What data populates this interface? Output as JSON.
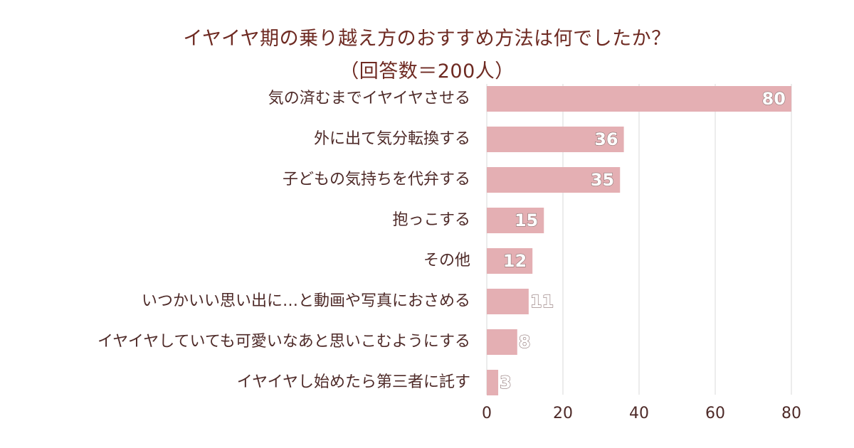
{
  "chart_data": {
    "type": "bar",
    "orientation": "horizontal",
    "title": "イヤイヤ期の乗り越え方のおすすめ方法は何でしたか？",
    "subtitle": "（回答数＝200人）",
    "xlabel": "",
    "ylabel": "",
    "categories": [
      "気の済むまでイヤイヤさせる",
      "外に出て気分転換する",
      "子どもの気持ちを代弁する",
      "抱っこする",
      "その他",
      "いつかいい思い出に…と動画や写真におさめる",
      "イヤイヤしていても可愛いなあと思いこむようにする",
      "イヤイヤし始めたら第三者に託す"
    ],
    "values": [
      80,
      36,
      35,
      15,
      12,
      11,
      8,
      3
    ],
    "xlim": [
      0,
      80
    ],
    "xticks": [
      0,
      20,
      40,
      60,
      80
    ],
    "grid": true,
    "legend": "none",
    "bar_color": "#e4afb3",
    "title_color": "#6e2a22",
    "grid_color": "#d9d9d9"
  }
}
